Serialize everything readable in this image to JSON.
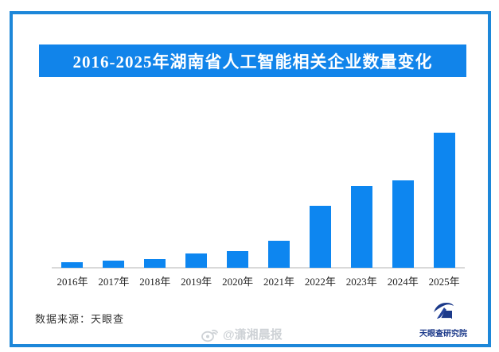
{
  "page": {
    "background_color": "#ffffff",
    "frame_color": "#1d87d9"
  },
  "title": {
    "text": "2016-2025年湖南省人工智能相关企业数量变化",
    "background_color": "#1184ea",
    "text_color": "#ffffff"
  },
  "chart_data": {
    "type": "bar",
    "title": "2016-2025年湖南省人工智能相关企业数量变化",
    "categories": [
      "2016年",
      "2017年",
      "2018年",
      "2019年",
      "2020年",
      "2021年",
      "2022年",
      "2023年",
      "2024年",
      "2025年"
    ],
    "values": [
      7,
      9,
      11,
      18,
      21,
      34,
      78,
      102,
      109,
      169
    ],
    "values_note": "图中未标注具体数值，数值为按柱高估读的相对值（最高柱=169）",
    "xlabel": "",
    "ylabel": "",
    "ylim": [
      0,
      180
    ],
    "grid": false,
    "legend": false,
    "bar_color": "#0d86f0",
    "axis_line_color": "#d9d9d9"
  },
  "footer": {
    "source_label": "数据来源：天眼查"
  },
  "watermark": {
    "icon": "weibo-icon",
    "text": "@潇湘晨报"
  },
  "logo": {
    "icon": "tianyancha-logo-icon",
    "text": "天眼查研究院",
    "color": "#1c3a8a"
  }
}
